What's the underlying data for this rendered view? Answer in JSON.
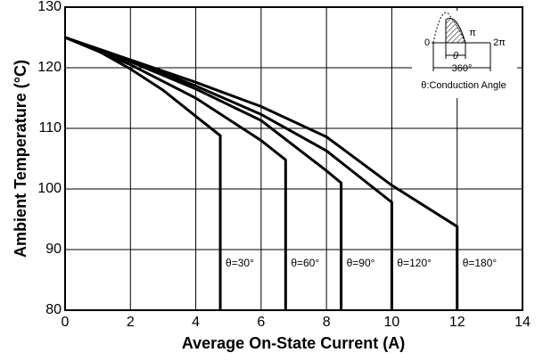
{
  "chart_data": {
    "type": "line",
    "x_label": "Average On-State Current (A)",
    "y_label": "Ambient Temperature (°C)",
    "xlim": [
      0,
      14
    ],
    "ylim": [
      80,
      130
    ],
    "xticks": [
      0,
      2,
      4,
      6,
      8,
      10,
      12,
      14
    ],
    "yticks": [
      80,
      90,
      100,
      110,
      120,
      130
    ],
    "grid": true,
    "series": [
      {
        "name": "θ=30°",
        "color": "#000000",
        "x": [
          0,
          1,
          2,
          3,
          4,
          4.75,
          4.75
        ],
        "values": [
          125,
          122.8,
          119.8,
          116.3,
          112,
          108.8,
          80
        ]
      },
      {
        "name": "θ=60°",
        "color": "#000000",
        "x": [
          0,
          2,
          4,
          6,
          6.75,
          6.75
        ],
        "values": [
          125,
          120.5,
          115,
          108,
          104.8,
          80
        ]
      },
      {
        "name": "θ=90°",
        "color": "#000000",
        "x": [
          0,
          2,
          4,
          6,
          8,
          8.45,
          8.45
        ],
        "values": [
          125,
          121,
          116.5,
          111.3,
          103,
          101,
          80
        ]
      },
      {
        "name": "θ=120°",
        "color": "#000000",
        "x": [
          0,
          2,
          4,
          6,
          8,
          10,
          10
        ],
        "values": [
          125,
          121.2,
          117,
          112.3,
          106.3,
          97.8,
          80
        ]
      },
      {
        "name": "θ=180°",
        "color": "#000000",
        "x": [
          0,
          2,
          4,
          6,
          8,
          10,
          12,
          12
        ],
        "values": [
          125,
          121.3,
          117.6,
          113.6,
          108.6,
          100.6,
          93.8,
          80
        ]
      }
    ],
    "annotations": [
      "0",
      "π",
      "2π",
      "θ",
      "360°",
      "θ:Conduction Angle"
    ]
  }
}
